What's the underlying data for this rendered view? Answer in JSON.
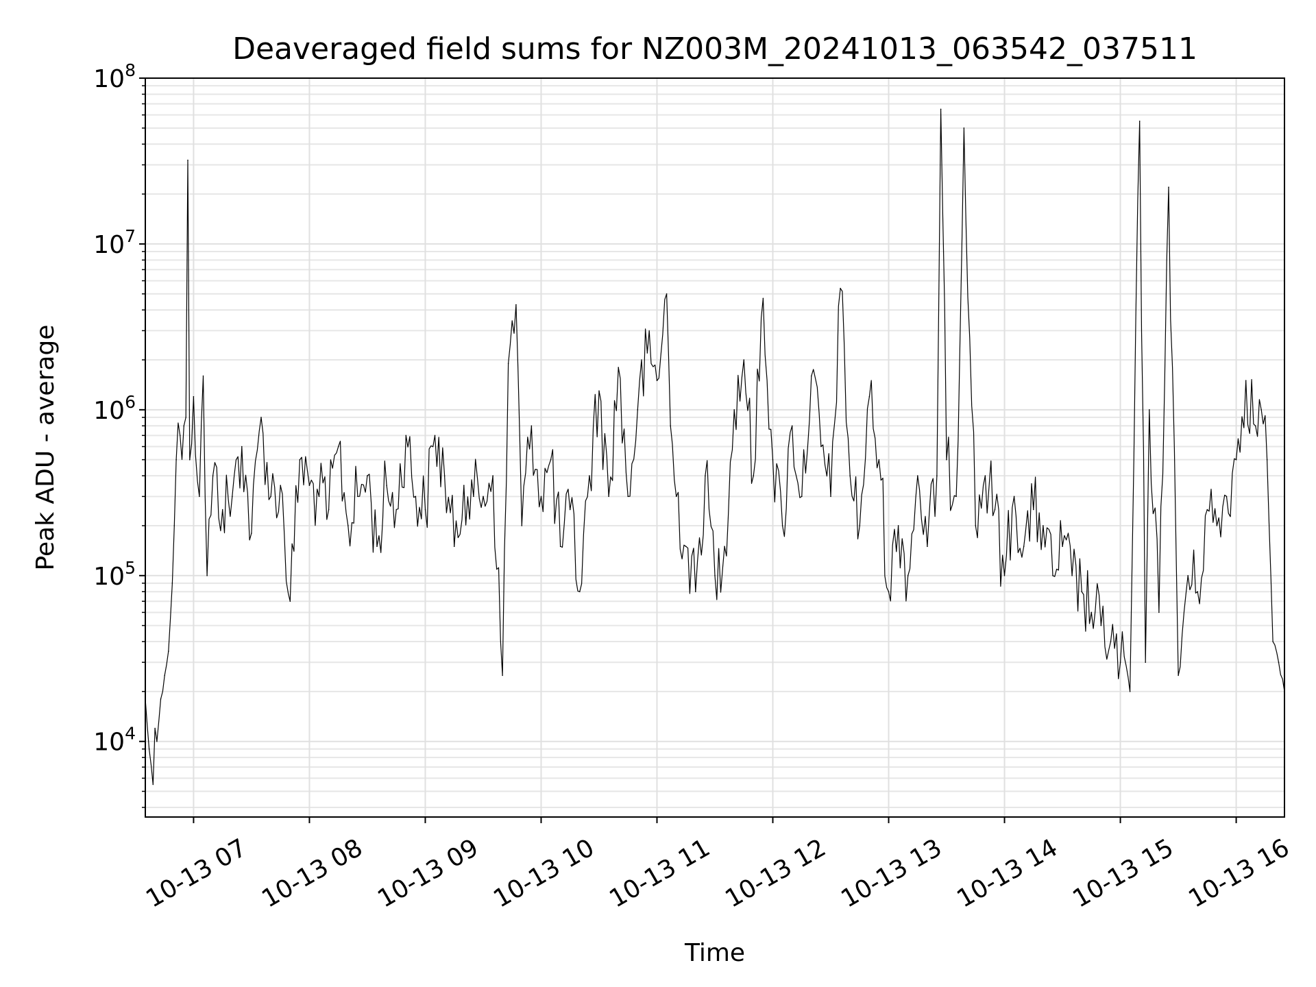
{
  "chart_data": {
    "type": "line",
    "title": "Deaveraged field sums for NZ003M_20241013_063542_037511",
    "xlabel": "Time",
    "ylabel": "Peak ADU - average",
    "yscale": "log",
    "ylim": [
      3500,
      100000000
    ],
    "xlim": [
      "2024-10-13 06:35",
      "2024-10-13 16:25"
    ],
    "grid": true,
    "line_color": "#000000",
    "x_ticks": [
      {
        "value": "2024-10-13 07:00",
        "label": "10-13 07"
      },
      {
        "value": "2024-10-13 08:00",
        "label": "10-13 08"
      },
      {
        "value": "2024-10-13 09:00",
        "label": "10-13 09"
      },
      {
        "value": "2024-10-13 10:00",
        "label": "10-13 10"
      },
      {
        "value": "2024-10-13 11:00",
        "label": "10-13 11"
      },
      {
        "value": "2024-10-13 12:00",
        "label": "10-13 12"
      },
      {
        "value": "2024-10-13 13:00",
        "label": "10-13 13"
      },
      {
        "value": "2024-10-13 14:00",
        "label": "10-13 14"
      },
      {
        "value": "2024-10-13 15:00",
        "label": "10-13 15"
      },
      {
        "value": "2024-10-13 16:00",
        "label": "10-13 16"
      }
    ],
    "y_ticks": [
      {
        "value": 10000,
        "base": "10",
        "exp": "4"
      },
      {
        "value": 100000,
        "base": "10",
        "exp": "5"
      },
      {
        "value": 1000000,
        "base": "10",
        "exp": "6"
      },
      {
        "value": 10000000,
        "base": "10",
        "exp": "7"
      },
      {
        "value": 100000000,
        "base": "10",
        "exp": "8"
      }
    ],
    "series": [
      {
        "x": [
          "2024-10-13 06:35",
          "2024-10-13 06:37",
          "2024-10-13 06:39",
          "2024-10-13 06:40",
          "2024-10-13 06:41",
          "2024-10-13 06:43",
          "2024-10-13 06:45",
          "2024-10-13 06:47",
          "2024-10-13 06:49",
          "2024-10-13 06:50",
          "2024-10-13 06:51",
          "2024-10-13 06:53",
          "2024-10-13 06:55",
          "2024-10-13 06:56",
          "2024-10-13 06:57",
          "2024-10-13 06:58",
          "2024-10-13 07:00",
          "2024-10-13 07:03",
          "2024-10-13 07:05",
          "2024-10-13 07:07",
          "2024-10-13 07:10",
          "2024-10-13 07:15",
          "2024-10-13 07:20",
          "2024-10-13 07:25",
          "2024-10-13 07:30",
          "2024-10-13 07:35",
          "2024-10-13 07:40",
          "2024-10-13 07:45",
          "2024-10-13 07:50",
          "2024-10-13 07:55",
          "2024-10-13 08:00",
          "2024-10-13 08:05",
          "2024-10-13 08:10",
          "2024-10-13 08:15",
          "2024-10-13 08:20",
          "2024-10-13 08:25",
          "2024-10-13 08:30",
          "2024-10-13 08:35",
          "2024-10-13 08:40",
          "2024-10-13 08:45",
          "2024-10-13 08:50",
          "2024-10-13 08:55",
          "2024-10-13 09:00",
          "2024-10-13 09:05",
          "2024-10-13 09:10",
          "2024-10-13 09:15",
          "2024-10-13 09:20",
          "2024-10-13 09:25",
          "2024-10-13 09:30",
          "2024-10-13 09:35",
          "2024-10-13 09:40",
          "2024-10-13 09:43",
          "2024-10-13 09:47",
          "2024-10-13 09:50",
          "2024-10-13 09:55",
          "2024-10-13 10:00",
          "2024-10-13 10:05",
          "2024-10-13 10:10",
          "2024-10-13 10:15",
          "2024-10-13 10:20",
          "2024-10-13 10:25",
          "2024-10-13 10:30",
          "2024-10-13 10:35",
          "2024-10-13 10:40",
          "2024-10-13 10:45",
          "2024-10-13 10:50",
          "2024-10-13 10:55",
          "2024-10-13 11:00",
          "2024-10-13 11:05",
          "2024-10-13 11:07",
          "2024-10-13 11:10",
          "2024-10-13 11:15",
          "2024-10-13 11:20",
          "2024-10-13 11:25",
          "2024-10-13 11:30",
          "2024-10-13 11:35",
          "2024-10-13 11:40",
          "2024-10-13 11:45",
          "2024-10-13 11:50",
          "2024-10-13 11:55",
          "2024-10-13 12:00",
          "2024-10-13 12:05",
          "2024-10-13 12:10",
          "2024-10-13 12:15",
          "2024-10-13 12:20",
          "2024-10-13 12:25",
          "2024-10-13 12:30",
          "2024-10-13 12:35",
          "2024-10-13 12:40",
          "2024-10-13 12:45",
          "2024-10-13 12:50",
          "2024-10-13 12:55",
          "2024-10-13 13:00",
          "2024-10-13 13:05",
          "2024-10-13 13:10",
          "2024-10-13 13:15",
          "2024-10-13 13:20",
          "2024-10-13 13:25",
          "2024-10-13 13:27",
          "2024-10-13 13:30",
          "2024-10-13 13:35",
          "2024-10-13 13:39",
          "2024-10-13 13:45",
          "2024-10-13 13:50",
          "2024-10-13 13:55",
          "2024-10-13 14:00",
          "2024-10-13 14:05",
          "2024-10-13 14:10",
          "2024-10-13 14:15",
          "2024-10-13 14:20",
          "2024-10-13 14:25",
          "2024-10-13 14:30",
          "2024-10-13 14:35",
          "2024-10-13 14:40",
          "2024-10-13 14:45",
          "2024-10-13 14:50",
          "2024-10-13 14:55",
          "2024-10-13 15:00",
          "2024-10-13 15:05",
          "2024-10-13 15:10",
          "2024-10-13 15:13",
          "2024-10-13 15:15",
          "2024-10-13 15:20",
          "2024-10-13 15:25",
          "2024-10-13 15:30",
          "2024-10-13 15:35",
          "2024-10-13 15:40",
          "2024-10-13 15:45",
          "2024-10-13 15:50",
          "2024-10-13 15:55",
          "2024-10-13 16:00",
          "2024-10-13 16:05",
          "2024-10-13 16:10",
          "2024-10-13 16:13",
          "2024-10-13 16:16",
          "2024-10-13 16:19",
          "2024-10-13 16:22",
          "2024-10-13 16:25"
        ],
        "values": [
          18000,
          9000,
          5500,
          12000,
          10000,
          18000,
          25000,
          35000,
          90000,
          200000,
          500000,
          700000,
          800000,
          900000,
          32000000,
          500000,
          1200000,
          300000,
          1600000,
          100000,
          400000,
          250000,
          300000,
          600000,
          180000,
          900000,
          300000,
          350000,
          70000,
          500000,
          350000,
          300000,
          250000,
          600000,
          200000,
          300000,
          400000,
          150000,
          350000,
          250000,
          700000,
          300000,
          250000,
          700000,
          400000,
          150000,
          350000,
          300000,
          300000,
          400000,
          25000,
          1900000,
          4300000,
          200000,
          800000,
          300000,
          500000,
          150000,
          250000,
          80000,
          400000,
          1300000,
          300000,
          1800000,
          300000,
          1000000,
          2200000,
          1500000,
          5000000,
          800000,
          300000,
          150000,
          80000,
          400000,
          100000,
          150000,
          1000000,
          2000000,
          400000,
          4700000,
          500000,
          200000,
          800000,
          300000,
          1600000,
          600000,
          300000,
          5400000,
          400000,
          200000,
          1200000,
          500000,
          80000,
          200000,
          100000,
          400000,
          150000,
          400000,
          65000000,
          500000,
          300000,
          50000000,
          200000,
          400000,
          250000,
          100000,
          300000,
          150000,
          250000,
          200000,
          100000,
          150000,
          100000,
          80000,
          60000,
          50000,
          40000,
          30000,
          20000,
          55000000,
          30000,
          1000000,
          60000,
          22000000,
          25000,
          100000,
          80000,
          250000,
          200000,
          300000,
          500000,
          1500000,
          800000,
          1000000,
          500000,
          40000,
          30000,
          20000
        ]
      }
    ]
  }
}
